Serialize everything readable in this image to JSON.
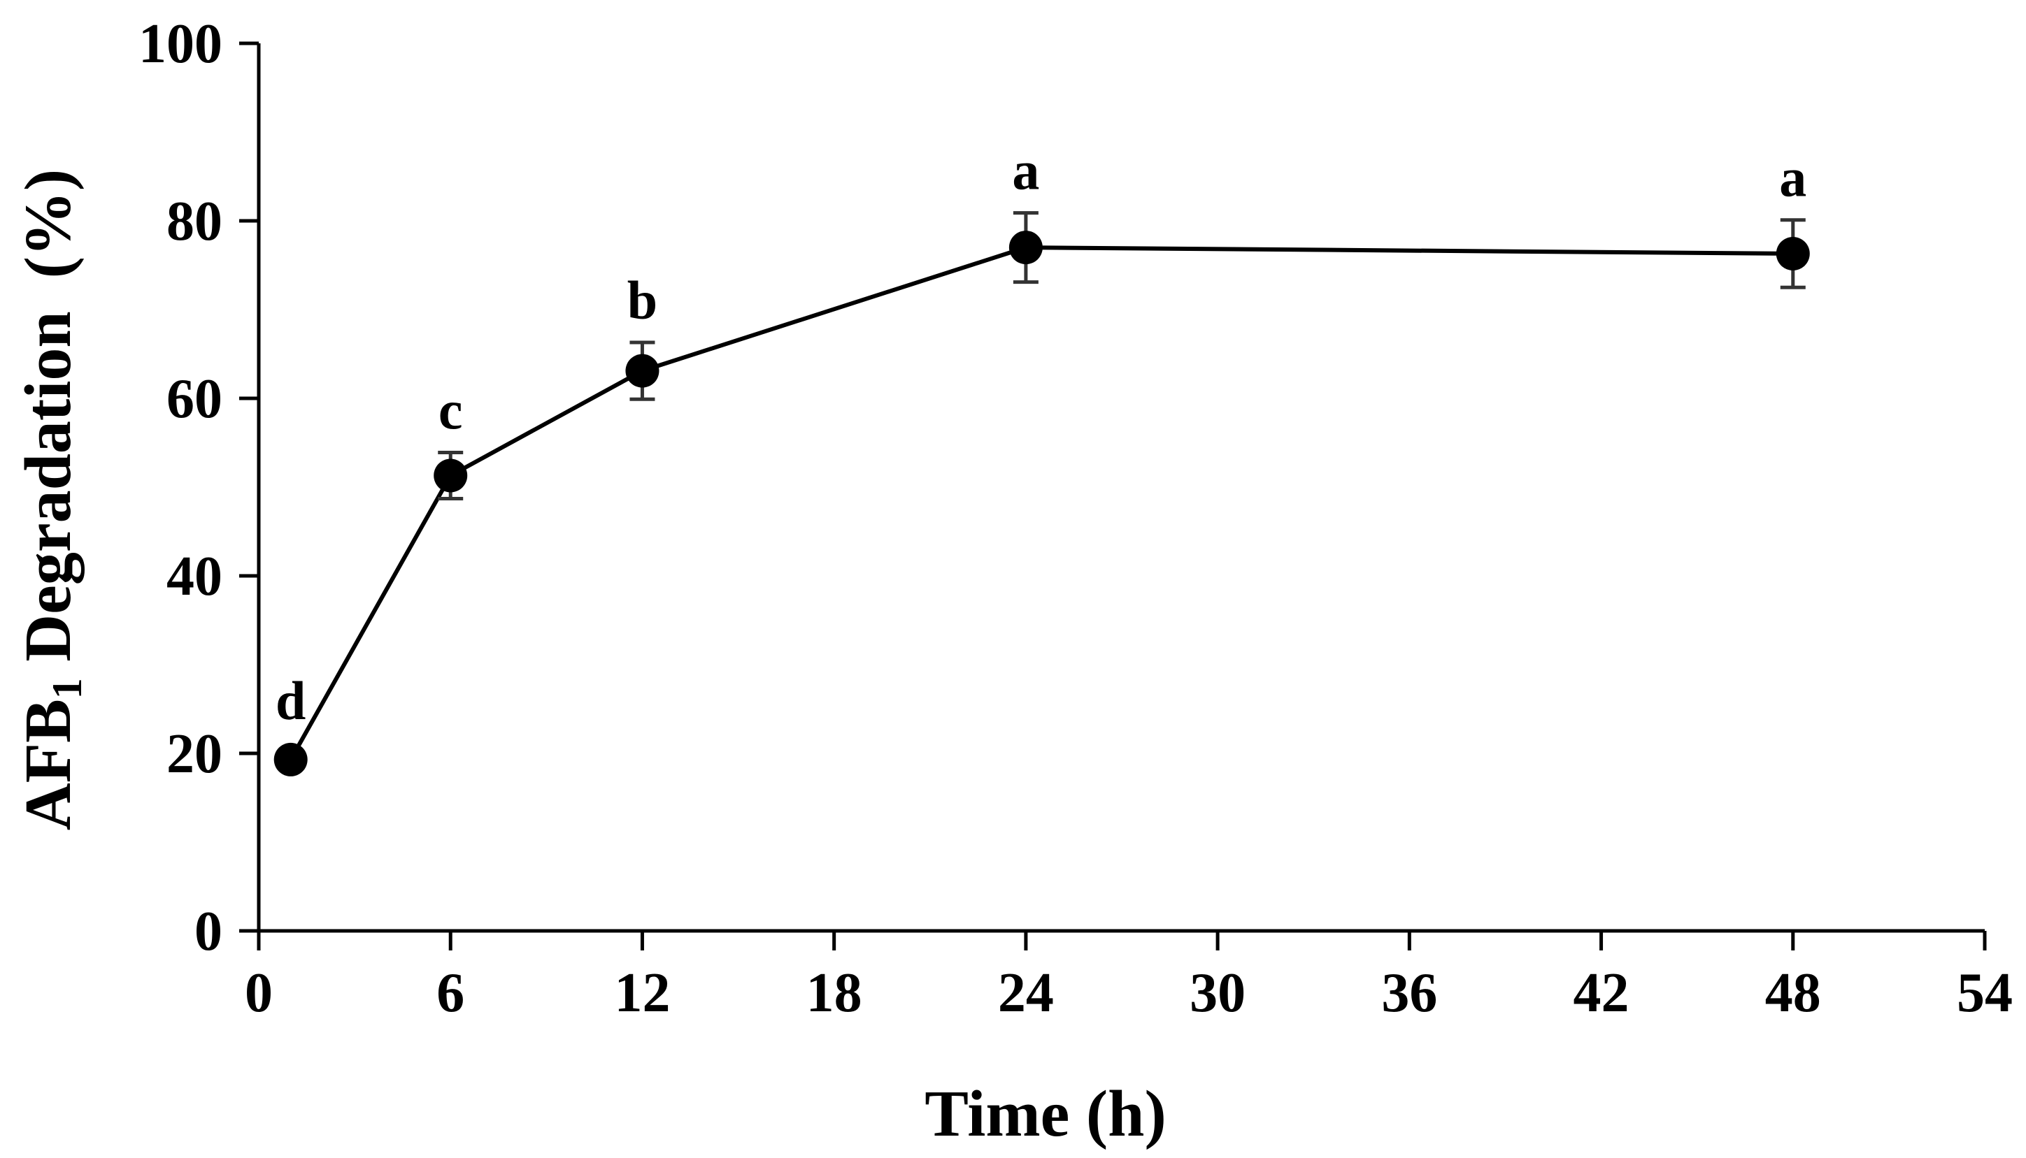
{
  "chart_data": {
    "type": "line",
    "title": "",
    "xlabel": "Time (h)",
    "ylabel": {
      "prefix": "AFB",
      "subscript": "1",
      "suffix": " Degradation  (%)"
    },
    "xlim": [
      0,
      54
    ],
    "ylim": [
      0,
      100
    ],
    "xticks": [
      0,
      6,
      12,
      18,
      24,
      30,
      36,
      42,
      48,
      54
    ],
    "yticks": [
      0,
      20,
      40,
      60,
      80,
      100
    ],
    "grid": false,
    "legend": null,
    "series": [
      {
        "name": "AFB1 Degradation",
        "points": [
          {
            "x": 1,
            "y": 19.3,
            "err": 0.8,
            "letter": "d"
          },
          {
            "x": 6,
            "y": 51.3,
            "err": 2.6,
            "letter": "c"
          },
          {
            "x": 12,
            "y": 63.1,
            "err": 3.2,
            "letter": "b"
          },
          {
            "x": 24,
            "y": 77.0,
            "err": 3.9,
            "letter": "a"
          },
          {
            "x": 48,
            "y": 76.3,
            "err": 3.8,
            "letter": "a"
          }
        ]
      }
    ]
  },
  "colors": {
    "line": "#000000",
    "marker": "#000000",
    "errorbar": "#333333",
    "axis": "#000000"
  }
}
